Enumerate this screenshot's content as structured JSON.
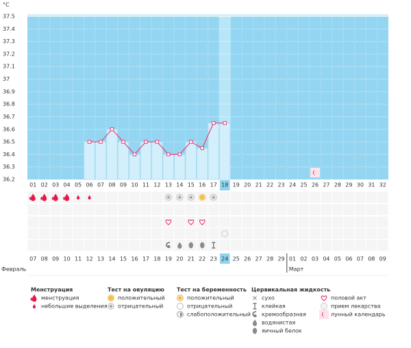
{
  "chart_data": {
    "type": "line",
    "unit": "°C",
    "categories": [
      "01",
      "02",
      "03",
      "04",
      "05",
      "06",
      "07",
      "08",
      "09",
      "10",
      "11",
      "12",
      "13",
      "14",
      "15",
      "16",
      "17",
      "18",
      "19",
      "20",
      "21",
      "22",
      "23",
      "24",
      "25",
      "26",
      "27",
      "28",
      "29",
      "30",
      "31",
      "32"
    ],
    "selected": "18",
    "series": [
      {
        "color": "#e8417a",
        "bar_color": "#d4effc",
        "values": [
          null,
          null,
          null,
          null,
          null,
          36.5,
          36.5,
          36.6,
          36.5,
          36.4,
          36.5,
          36.5,
          36.4,
          36.4,
          36.5,
          36.45,
          36.65,
          36.65,
          null,
          null,
          null,
          null,
          null,
          null,
          null,
          null,
          null,
          null,
          null,
          null,
          null,
          null
        ]
      }
    ],
    "ylim": [
      36.2,
      37.5
    ],
    "yticks": [
      36.2,
      36.3,
      36.4,
      36.5,
      36.6,
      36.7,
      36.8,
      36.9,
      37,
      37.1,
      37.2,
      37.3,
      37.4,
      37.5
    ],
    "grid": true,
    "background": "#94d6f2",
    "chart_icons": [
      null,
      null,
      null,
      null,
      null,
      null,
      null,
      null,
      null,
      null,
      null,
      null,
      null,
      null,
      null,
      null,
      null,
      null,
      null,
      null,
      null,
      null,
      null,
      null,
      null,
      "moon",
      null,
      null,
      null,
      null,
      null,
      null
    ],
    "symbol_rows": [
      [
        "menstruation",
        "menstruation",
        "menstruation",
        "menstruation",
        "spotting",
        "spotting",
        null,
        null,
        null,
        null,
        null,
        null,
        "ovu-neg",
        "ovu-neg",
        "ovu-neg",
        "ovu-pos",
        "ovu-neg",
        null,
        null,
        null,
        null,
        null,
        null,
        null,
        null,
        null,
        null,
        null,
        null,
        null,
        null,
        null
      ],
      [
        null,
        null,
        null,
        null,
        null,
        null,
        null,
        null,
        null,
        null,
        null,
        null,
        null,
        null,
        null,
        null,
        null,
        null,
        null,
        null,
        null,
        null,
        null,
        null,
        null,
        null,
        null,
        null,
        null,
        null,
        null,
        null
      ],
      [
        null,
        null,
        null,
        null,
        null,
        null,
        null,
        null,
        null,
        null,
        null,
        null,
        "sex",
        null,
        "sex",
        "sex",
        null,
        null,
        null,
        null,
        null,
        null,
        null,
        null,
        null,
        null,
        null,
        null,
        null,
        null,
        null,
        null
      ],
      [
        null,
        null,
        null,
        null,
        null,
        null,
        null,
        null,
        null,
        null,
        null,
        null,
        null,
        null,
        null,
        null,
        null,
        "pill",
        null,
        null,
        null,
        null,
        null,
        null,
        null,
        null,
        null,
        null,
        null,
        null,
        null,
        null
      ],
      [
        null,
        null,
        null,
        null,
        null,
        null,
        null,
        null,
        null,
        null,
        null,
        null,
        "creamy",
        "watery",
        "eggwhite",
        "eggwhite",
        "sticky",
        null,
        null,
        null,
        null,
        null,
        null,
        null,
        null,
        null,
        null,
        null,
        null,
        null,
        null,
        null
      ]
    ],
    "dates": [
      {
        "text": "07"
      },
      {
        "text": "08"
      },
      {
        "text": "09"
      },
      {
        "text": "10"
      },
      {
        "text": "11",
        "color": "#e8174a"
      },
      {
        "text": "12",
        "color": "#e8174a"
      },
      {
        "text": "13"
      },
      {
        "text": "14"
      },
      {
        "text": "15"
      },
      {
        "text": "16"
      },
      {
        "text": "17"
      },
      {
        "text": "18",
        "color": "#e8174a"
      },
      {
        "text": "19",
        "color": "#e8174a"
      },
      {
        "text": "20"
      },
      {
        "text": "21"
      },
      {
        "text": "22"
      },
      {
        "text": "23"
      },
      {
        "text": "24"
      },
      {
        "text": "25",
        "color": "#e8174a"
      },
      {
        "text": "26",
        "color": "#e8174a"
      },
      {
        "text": "27"
      },
      {
        "text": "28"
      },
      {
        "text": "29"
      },
      {
        "text": "01"
      },
      {
        "text": "02"
      },
      {
        "text": "03",
        "color": "#e8174a"
      },
      {
        "text": "04",
        "color": "#e8174a"
      },
      {
        "text": "05"
      },
      {
        "text": "06"
      },
      {
        "text": "07"
      },
      {
        "text": "08"
      },
      {
        "text": "09"
      }
    ],
    "months": [
      "Февраль",
      "Март"
    ],
    "legend": [
      {
        "title": "Менструация",
        "items": [
          {
            "label": "менструация",
            "icon": "menstruation"
          },
          {
            "label": "небольшие выделения",
            "icon": "spotting"
          }
        ]
      },
      {
        "title": "Тест на овуляцию",
        "items": [
          {
            "label": "положительный",
            "icon": "ovu-pos"
          },
          {
            "label": "отрицательный",
            "icon": "ovu-neg"
          }
        ]
      },
      {
        "title": "Тест на беременность",
        "items": [
          {
            "label": "положительный",
            "icon": "preg-pos"
          },
          {
            "label": "отрицательный",
            "icon": "preg-neg"
          },
          {
            "label": "слабоположительный",
            "icon": "preg-weak"
          }
        ]
      },
      {
        "title": "Цервикальная жидкость",
        "items": [
          {
            "label": "сухо",
            "icon": "dry"
          },
          {
            "label": "клейкая",
            "icon": "sticky"
          },
          {
            "label": "кремообразная",
            "icon": "creamy"
          },
          {
            "label": "водянистая",
            "icon": "watery"
          },
          {
            "label": "яичный белок",
            "icon": "eggwhite"
          }
        ]
      },
      {
        "items": [
          {
            "label": "половой акт",
            "icon": "sex"
          },
          {
            "label": "прием лекарства",
            "icon": "pill"
          },
          {
            "label": "лунный календарь",
            "icon": "moon"
          }
        ]
      }
    ]
  }
}
